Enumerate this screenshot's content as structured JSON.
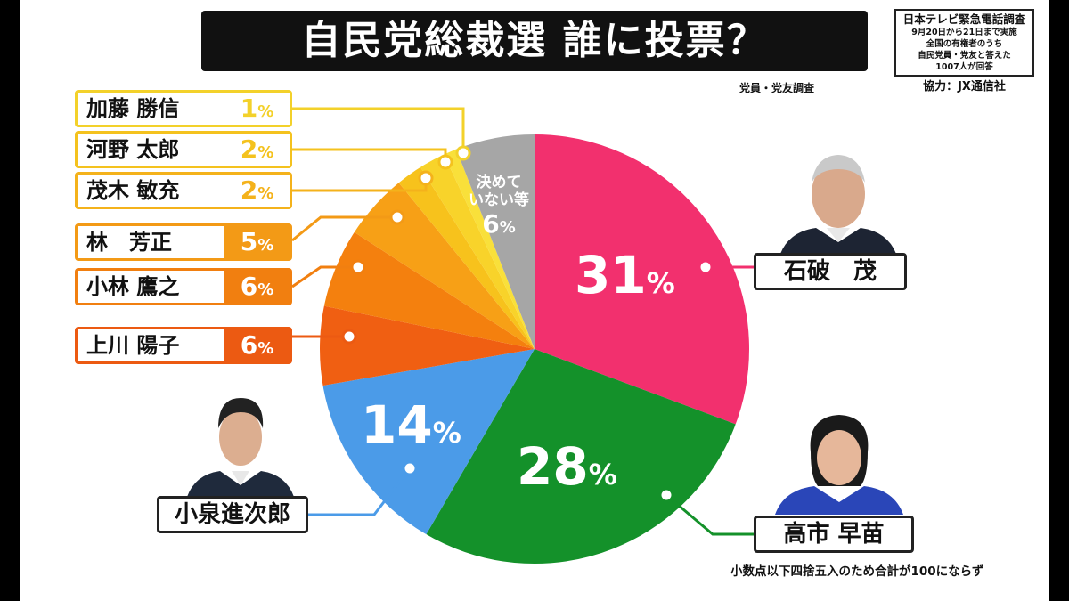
{
  "title": "自民党総裁選 誰に投票？",
  "subtitle": "党員・党友調査",
  "survey": {
    "head": "日本テレビ緊急電話調査",
    "lines": [
      "9月20日から21日まで実施",
      "全国の有権者のうち",
      "自民党員・党友と答えた",
      "1007人が回答"
    ]
  },
  "cooperation": "協力：JX通信社",
  "footnote": "小数点以下四捨五入のため合計が100にならず",
  "percent_sign": "%",
  "chart_data": {
    "type": "pie",
    "unit": "%",
    "slices": [
      {
        "name": "石破 茂",
        "value": 31,
        "color": "#f2306e"
      },
      {
        "name": "高市 早苗",
        "value": 28,
        "color": "#14912a"
      },
      {
        "name": "小泉進次郎",
        "value": 14,
        "color": "#4b9be8"
      },
      {
        "name": "上川 陽子",
        "value": 6,
        "color": "#f05f12"
      },
      {
        "name": "小林 鷹之",
        "value": 6,
        "color": "#f4800e"
      },
      {
        "name": "林　芳正",
        "value": 5,
        "color": "#f7a016"
      },
      {
        "name": "茂木 敏充",
        "value": 2,
        "color": "#f7c21c"
      },
      {
        "name": "河野 太郎",
        "value": 2,
        "color": "#f8d32a"
      },
      {
        "name": "加藤 勝信",
        "value": 1,
        "color": "#f9e03a"
      },
      {
        "name": "決めていない等",
        "value": 6,
        "color": "#a6a6a6"
      }
    ]
  },
  "left_labels": [
    {
      "name": "加藤 勝信",
      "value": "1",
      "color": "#f3d12a",
      "text_color": "#f3d12a"
    },
    {
      "name": "河野 太郎",
      "value": "2",
      "color": "#f4c21e",
      "text_color": "#f4c21e"
    },
    {
      "name": "茂木 敏充",
      "value": "2",
      "color": "#f4b21b",
      "text_color": "#f4b21b"
    },
    {
      "name": "林　芳正",
      "value": "5",
      "color": "#f39a16",
      "text_color": "#ffffff"
    },
    {
      "name": "小林 鷹之",
      "value": "6",
      "color": "#f17f10",
      "text_color": "#ffffff"
    },
    {
      "name": "上川 陽子",
      "value": "6",
      "color": "#ec5a12",
      "text_color": "#ffffff"
    }
  ],
  "undecided": {
    "line1": "決めて",
    "line2": "いない等",
    "value": "6"
  },
  "big_labels": {
    "ishiba": "31",
    "takaichi": "28",
    "koizumi": "14"
  },
  "candidates": {
    "ishiba": "石破　茂",
    "takaichi": "高市 早苗",
    "koizumi": "小泉進次郎"
  }
}
